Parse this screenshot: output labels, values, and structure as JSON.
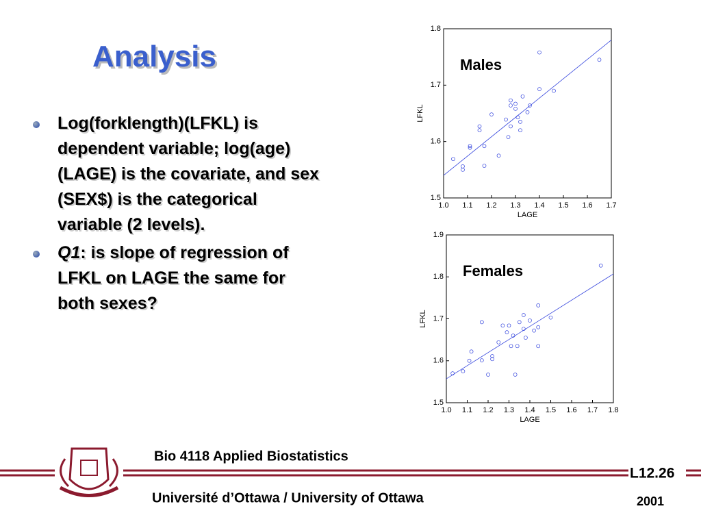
{
  "title": "Analysis",
  "bullets": [
    {
      "text": "Log(forklength)(LFKL) is dependent variable; log(age) (LAGE) is the covariate, and sex (SEX$) is the categorical variable (2 levels)."
    },
    {
      "em": "Q1",
      "text": ": is slope of regression of LFKL on LAGE the same for both sexes?"
    }
  ],
  "footer": {
    "course": "Bio 4118 Applied Biostatistics",
    "slide_number": "L12.26",
    "university": "Université d’Ottawa / University of Ottawa",
    "year": "2001"
  },
  "chart_data": [
    {
      "type": "scatter",
      "annotation": "Males",
      "x_label": "LAGE",
      "y_label": "LFKL",
      "x": [
        1.04,
        1.08,
        1.08,
        1.11,
        1.11,
        1.15,
        1.15,
        1.17,
        1.17,
        1.2,
        1.23,
        1.26,
        1.27,
        1.28,
        1.28,
        1.28,
        1.3,
        1.3,
        1.31,
        1.32,
        1.32,
        1.33,
        1.35,
        1.36,
        1.4,
        1.4,
        1.46,
        1.65
      ],
      "values": [
        1.569,
        1.556,
        1.55,
        1.592,
        1.589,
        1.627,
        1.62,
        1.592,
        1.557,
        1.648,
        1.575,
        1.639,
        1.608,
        1.664,
        1.673,
        1.627,
        1.658,
        1.667,
        1.643,
        1.635,
        1.62,
        1.68,
        1.652,
        1.664,
        1.758,
        1.693,
        1.69,
        1.745
      ],
      "color": "#3344dd",
      "fit": {
        "x": [
          1.0,
          1.7
        ],
        "values": [
          1.54,
          1.78
        ]
      },
      "xlim": [
        1.0,
        1.7
      ],
      "ylim": [
        1.5,
        1.8
      ],
      "xticks": [
        {
          "value": 1,
          "label": "1.0"
        },
        1.1,
        1.2,
        1.3,
        1.4,
        1.5,
        1.6,
        1.7
      ],
      "yticks": [
        1.5,
        1.6,
        1.7,
        1.8
      ]
    },
    {
      "type": "scatter",
      "annotation": "Females",
      "x_label": "LAGE",
      "y_label": "LFKL",
      "x": [
        1.03,
        1.08,
        1.11,
        1.12,
        1.17,
        1.17,
        1.2,
        1.22,
        1.22,
        1.25,
        1.27,
        1.29,
        1.3,
        1.31,
        1.32,
        1.33,
        1.34,
        1.35,
        1.37,
        1.37,
        1.38,
        1.4,
        1.42,
        1.44,
        1.44,
        1.44,
        1.5,
        1.74
      ],
      "values": [
        1.57,
        1.575,
        1.6,
        1.622,
        1.692,
        1.601,
        1.567,
        1.604,
        1.611,
        1.644,
        1.684,
        1.668,
        1.684,
        1.635,
        1.66,
        1.567,
        1.635,
        1.692,
        1.709,
        1.676,
        1.655,
        1.696,
        1.672,
        1.635,
        1.732,
        1.68,
        1.703,
        1.827
      ],
      "color": "#3344dd",
      "fit": {
        "x": [
          1.0,
          1.8
        ],
        "values": [
          1.557,
          1.807
        ]
      },
      "xlim": [
        1.0,
        1.8
      ],
      "ylim": [
        1.5,
        1.9
      ],
      "xticks": [
        {
          "value": 1,
          "label": "1.0"
        },
        1.1,
        1.2,
        1.3,
        1.4,
        1.5,
        1.6,
        1.7,
        1.8
      ],
      "yticks": [
        1.5,
        1.6,
        1.7,
        1.8,
        1.9
      ]
    }
  ]
}
